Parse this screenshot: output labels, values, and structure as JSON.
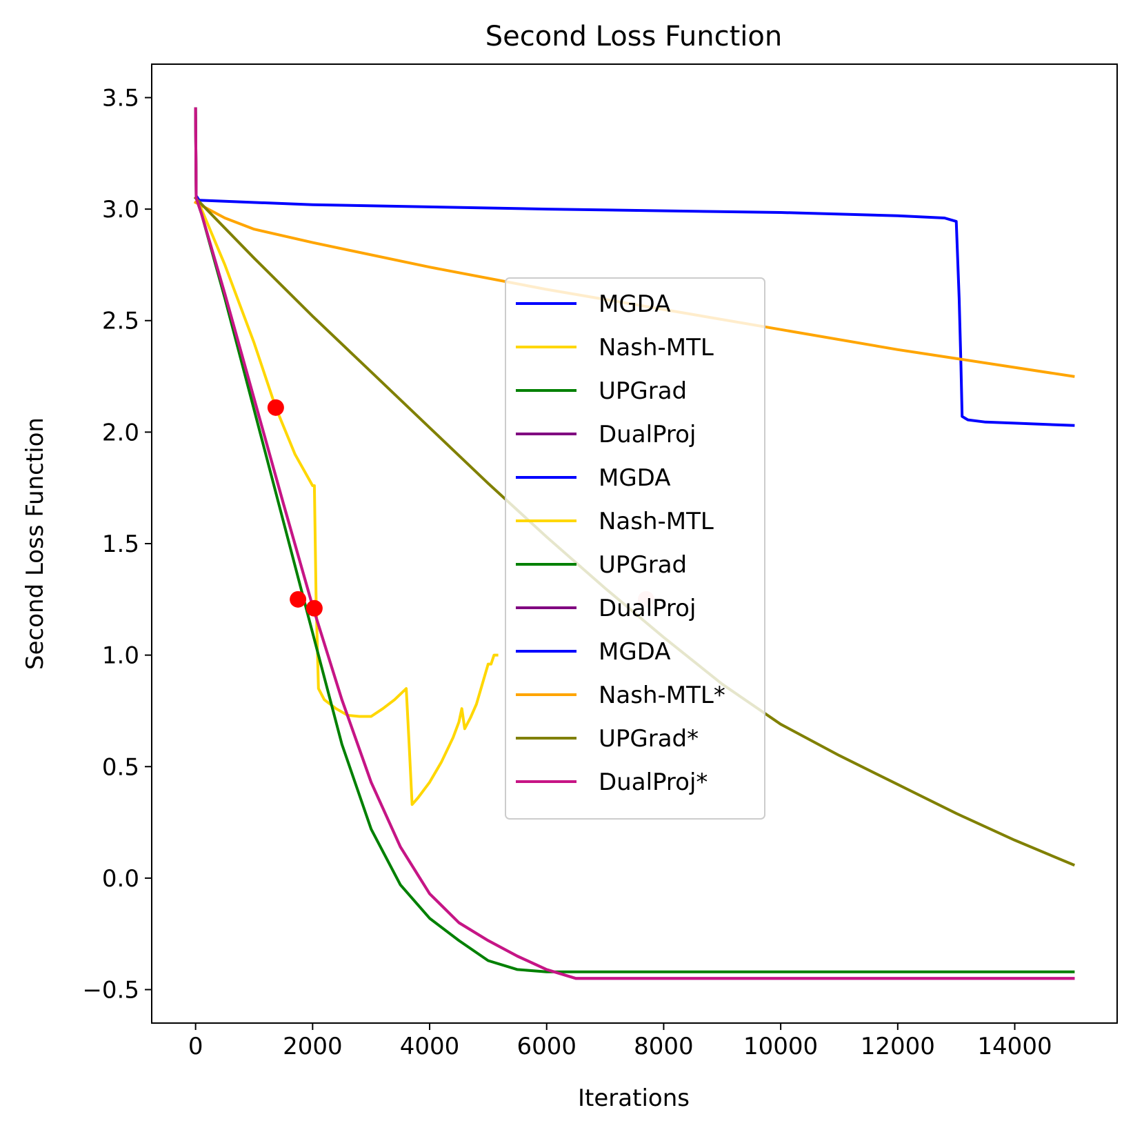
{
  "chart_data": {
    "type": "line",
    "title": "Second Loss Function",
    "xlabel": "Iterations",
    "ylabel": "Second Loss Function",
    "xlim": [
      -750,
      15750
    ],
    "ylim": [
      -0.65,
      3.65
    ],
    "xticks": [
      0,
      2000,
      4000,
      6000,
      8000,
      10000,
      12000,
      14000
    ],
    "xtick_labels": [
      "0",
      "2000",
      "4000",
      "6000",
      "8000",
      "10000",
      "12000",
      "14000"
    ],
    "yticks": [
      -0.5,
      0.0,
      0.5,
      1.0,
      1.5,
      2.0,
      2.5,
      3.0,
      3.5
    ],
    "ytick_labels": [
      "−0.5",
      "0.0",
      "0.5",
      "1.0",
      "1.5",
      "2.0",
      "2.5",
      "3.0",
      "3.5"
    ],
    "grid": false,
    "legend_position": "center",
    "series": [
      {
        "name": "MGDA",
        "color": "#0000ff",
        "x": [
          0,
          10,
          60,
          500,
          2000,
          6000,
          10000,
          12000,
          12800,
          13000,
          13050,
          13080,
          13100,
          13200,
          13500,
          14000,
          15000
        ],
        "y": [
          3.45,
          3.06,
          3.04,
          3.035,
          3.02,
          3.0,
          2.985,
          2.97,
          2.96,
          2.945,
          2.6,
          2.3,
          2.07,
          2.055,
          2.045,
          2.04,
          2.03
        ]
      },
      {
        "name": "Nash-MTL",
        "color": "#ffd700",
        "x": [
          0,
          10,
          100,
          500,
          1000,
          1370,
          1700,
          2000,
          2030,
          2060,
          2100,
          2200,
          2400,
          2600,
          2800,
          3000,
          3200,
          3400,
          3600,
          3650,
          3700,
          3800,
          4000,
          4200,
          4400,
          4500,
          4550,
          4600,
          4700,
          4800,
          5000,
          5050,
          5100,
          5150
        ],
        "y": [
          3.45,
          3.05,
          3.0,
          2.75,
          2.4,
          2.11,
          1.9,
          1.76,
          1.76,
          1.25,
          0.85,
          0.8,
          0.76,
          0.73,
          0.725,
          0.725,
          0.76,
          0.8,
          0.85,
          0.6,
          0.33,
          0.36,
          0.43,
          0.52,
          0.63,
          0.7,
          0.76,
          0.67,
          0.72,
          0.78,
          0.96,
          0.96,
          1.0,
          1.0
        ]
      },
      {
        "name": "UPGrad",
        "color": "#008000",
        "x": [
          0,
          10,
          100,
          500,
          1000,
          1500,
          1750,
          2000,
          2500,
          3000,
          3500,
          4000,
          4500,
          5000,
          5500,
          6000,
          8000,
          15000
        ],
        "y": [
          3.45,
          3.05,
          2.98,
          2.6,
          2.1,
          1.6,
          1.35,
          1.1,
          0.6,
          0.22,
          -0.03,
          -0.18,
          -0.28,
          -0.37,
          -0.41,
          -0.42,
          -0.42,
          -0.42
        ]
      },
      {
        "name": "DualProj",
        "color": "#800080",
        "x": [
          0,
          10,
          100,
          500,
          1000,
          1500,
          2000,
          2500,
          3000,
          3500,
          4000,
          4500,
          5000,
          5500,
          6000,
          6500,
          15000
        ],
        "y": [
          3.45,
          3.05,
          2.98,
          2.62,
          2.15,
          1.68,
          1.22,
          0.8,
          0.43,
          0.14,
          -0.07,
          -0.2,
          -0.28,
          -0.35,
          -0.41,
          -0.45,
          -0.45
        ]
      },
      {
        "name": "MGDA",
        "color": "#0000ff",
        "x": [],
        "y": []
      },
      {
        "name": "Nash-MTL",
        "color": "#ffd700",
        "x": [],
        "y": []
      },
      {
        "name": "UPGrad",
        "color": "#008000",
        "x": [],
        "y": []
      },
      {
        "name": "DualProj",
        "color": "#800080",
        "x": [],
        "y": []
      },
      {
        "name": "MGDA",
        "color": "#0000ff",
        "x": [],
        "y": []
      },
      {
        "name": "Nash-MTL*",
        "color": "#ffa500",
        "x": [
          0,
          500,
          1000,
          2000,
          4000,
          6000,
          8000,
          10000,
          12000,
          14000,
          15000
        ],
        "y": [
          3.03,
          2.96,
          2.91,
          2.85,
          2.74,
          2.64,
          2.55,
          2.46,
          2.37,
          2.29,
          2.25
        ]
      },
      {
        "name": "UPGrad*",
        "color": "#808000",
        "x": [
          0,
          1000,
          2000,
          3000,
          4000,
          5000,
          6000,
          7000,
          8000,
          9000,
          10000,
          11000,
          12000,
          13000,
          14000,
          15000
        ],
        "y": [
          3.05,
          2.78,
          2.52,
          2.27,
          2.02,
          1.77,
          1.53,
          1.3,
          1.08,
          0.87,
          0.69,
          0.55,
          0.42,
          0.29,
          0.17,
          0.06
        ]
      },
      {
        "name": "DualProj*",
        "color": "#c71585",
        "x": [
          0,
          10,
          100,
          500,
          1000,
          1500,
          2000,
          2500,
          3000,
          3500,
          4000,
          4500,
          5000,
          5500,
          6000,
          6500,
          15000
        ],
        "y": [
          3.45,
          3.05,
          2.98,
          2.62,
          2.15,
          1.68,
          1.22,
          0.8,
          0.43,
          0.14,
          -0.07,
          -0.2,
          -0.28,
          -0.35,
          -0.41,
          -0.45,
          -0.45
        ]
      }
    ],
    "markers": [
      {
        "x": 1370,
        "y": 2.11,
        "color": "#ff0000",
        "opacity": 1
      },
      {
        "x": 1750,
        "y": 1.25,
        "color": "#ff0000",
        "opacity": 1
      },
      {
        "x": 2030,
        "y": 1.21,
        "color": "#ff0000",
        "opacity": 1
      },
      {
        "x": 7700,
        "y": 1.25,
        "color": "#ff0000",
        "opacity": 0.2
      }
    ]
  }
}
